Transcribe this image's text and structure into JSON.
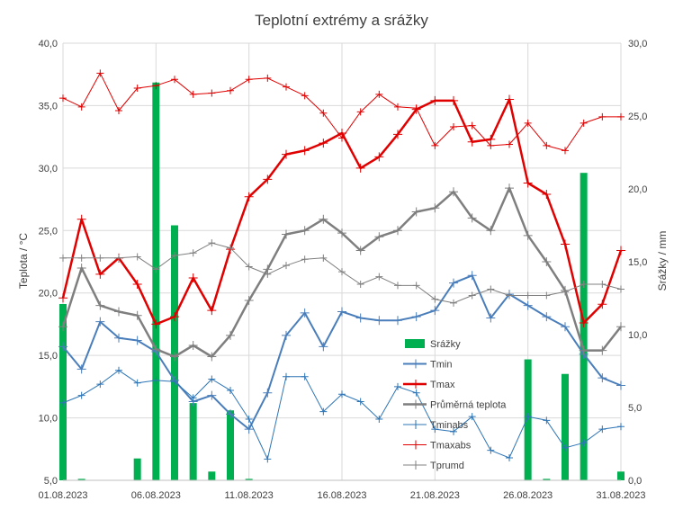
{
  "chart_data": {
    "type": "bar+line",
    "title": "Teplotní extrémy a srážky",
    "ylabel": "Teplota / °C",
    "y2label": "Srážky / mm",
    "ylim": [
      5,
      40
    ],
    "y2lim": [
      0,
      30
    ],
    "yticks": [
      "5,0",
      "10,0",
      "15,0",
      "20,0",
      "25,0",
      "30,0",
      "35,0",
      "40,0"
    ],
    "y2ticks": [
      "0,0",
      "5,0",
      "10,0",
      "15,0",
      "20,0",
      "25,0",
      "30,0"
    ],
    "grid": true,
    "legend_position": "right-inside",
    "x_labels": [
      {
        "day": 1,
        "label": "01.08.2023"
      },
      {
        "day": 6,
        "label": "06.08.2023"
      },
      {
        "day": 11,
        "label": "11.08.2023"
      },
      {
        "day": 16,
        "label": "16.08.2023"
      },
      {
        "day": 21,
        "label": "21.08.2023"
      },
      {
        "day": 26,
        "label": "26.08.2023"
      },
      {
        "day": 31,
        "label": "31.08.2023"
      }
    ],
    "days": [
      1,
      2,
      3,
      4,
      5,
      6,
      7,
      8,
      9,
      10,
      11,
      12,
      13,
      14,
      15,
      16,
      17,
      18,
      19,
      20,
      21,
      22,
      23,
      24,
      25,
      26,
      27,
      28,
      29,
      30,
      31
    ],
    "bars": {
      "name": "Srážky",
      "color": "#00b050",
      "values": [
        12.1,
        0.1,
        0,
        0,
        1.5,
        27.3,
        17.5,
        5.3,
        0.6,
        4.8,
        0.1,
        0,
        0,
        0,
        0,
        0,
        0,
        0,
        0,
        0,
        0,
        0,
        0,
        0,
        0,
        8.3,
        0.1,
        7.3,
        21.1,
        0,
        0.6
      ]
    },
    "series": [
      {
        "name": "Tmin",
        "color": "#4a7ebb",
        "width": 2,
        "values": [
          15.7,
          13.9,
          17.7,
          16.4,
          16.2,
          15.3,
          13.0,
          11.3,
          11.8,
          10.3,
          9.1,
          12.0,
          16.6,
          18.4,
          15.7,
          18.5,
          18.0,
          17.8,
          17.8,
          18.1,
          18.6,
          20.8,
          21.4,
          18.0,
          19.9,
          19.0,
          18.1,
          17.3,
          15.1,
          13.2,
          12.6
        ]
      },
      {
        "name": "Tmax",
        "color": "#e00000",
        "width": 2.5,
        "values": [
          19.6,
          25.9,
          21.5,
          22.8,
          20.7,
          17.5,
          18.1,
          21.2,
          18.6,
          23.5,
          27.7,
          29.1,
          31.1,
          31.4,
          32.0,
          32.8,
          30.0,
          30.9,
          32.7,
          34.7,
          35.4,
          35.4,
          32.1,
          32.3,
          35.5,
          28.8,
          27.9,
          23.9,
          17.6,
          19.1,
          23.4
        ]
      },
      {
        "name": "Průměrná teplota",
        "color": "#7f7f7f",
        "width": 2.5,
        "values": [
          17.3,
          22.0,
          19.0,
          18.5,
          18.2,
          15.5,
          14.9,
          15.8,
          14.9,
          16.6,
          19.4,
          21.9,
          24.7,
          25.0,
          25.9,
          24.8,
          23.4,
          24.5,
          25.0,
          26.5,
          26.8,
          28.1,
          26.0,
          25.0,
          28.4,
          24.6,
          22.5,
          20.2,
          15.4,
          15.4,
          17.3
        ]
      },
      {
        "name": "Tminabs",
        "color": "#2e75b6",
        "width": 1,
        "values": [
          11.2,
          11.8,
          12.7,
          13.8,
          12.8,
          13.0,
          12.9,
          11.6,
          13.1,
          12.2,
          9.9,
          6.7,
          13.3,
          13.3,
          10.5,
          11.9,
          11.3,
          9.9,
          12.5,
          12.0,
          9.1,
          8.9,
          10.1,
          7.4,
          6.8,
          10.1,
          9.8,
          7.6,
          8.0,
          9.1,
          9.3
        ]
      },
      {
        "name": "Tmaxabs",
        "color": "#e00000",
        "width": 1,
        "values": [
          35.6,
          34.9,
          37.6,
          34.6,
          36.4,
          36.6,
          37.1,
          35.9,
          36.0,
          36.2,
          37.1,
          37.2,
          36.5,
          35.8,
          34.4,
          32.4,
          34.5,
          35.9,
          34.9,
          34.8,
          31.8,
          33.3,
          33.4,
          31.8,
          31.9,
          33.6,
          31.8,
          31.4,
          33.6,
          34.1,
          34.1
        ]
      },
      {
        "name": "Tprumd",
        "color": "#808080",
        "width": 1,
        "values": [
          22.8,
          22.8,
          22.8,
          22.8,
          22.9,
          21.9,
          23.0,
          23.2,
          24.0,
          23.6,
          22.1,
          21.5,
          22.2,
          22.7,
          22.8,
          21.7,
          20.7,
          21.3,
          20.6,
          20.6,
          19.5,
          19.2,
          19.8,
          20.3,
          19.8,
          19.8,
          19.8,
          20.1,
          20.7,
          20.7,
          20.3
        ]
      }
    ],
    "legend": [
      "Srážky",
      "Tmin",
      "Tmax",
      "Průměrná teplota",
      "Tminabs",
      "Tmaxabs",
      "Tprumd"
    ]
  }
}
